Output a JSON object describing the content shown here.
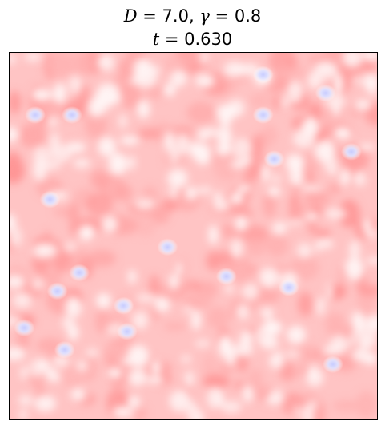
{
  "chart_data": {
    "type": "heatmap",
    "title": {
      "line1": {
        "D_symbol": "D",
        "D_value": "7.0",
        "gamma_symbol": "γ",
        "gamma_value": "0.8"
      },
      "line2": {
        "t_symbol": "t",
        "t_value": "0.630"
      }
    },
    "xlabel": "",
    "ylabel": "",
    "axes_ticks": "none",
    "colormap": "bwr",
    "grid": false,
    "description_values": {
      "field_range": [
        -1.0,
        1.0
      ],
      "dominant_sign": "positive (light red)",
      "negative_spots": [
        [
          0.07,
          0.17
        ],
        [
          0.17,
          0.17
        ],
        [
          0.69,
          0.17
        ],
        [
          0.86,
          0.11
        ],
        [
          0.69,
          0.06
        ],
        [
          0.93,
          0.27
        ],
        [
          0.72,
          0.29
        ],
        [
          0.11,
          0.4
        ],
        [
          0.43,
          0.53
        ],
        [
          0.59,
          0.61
        ],
        [
          0.13,
          0.65
        ],
        [
          0.76,
          0.64
        ],
        [
          0.31,
          0.69
        ],
        [
          0.04,
          0.75
        ],
        [
          0.32,
          0.76
        ],
        [
          0.15,
          0.81
        ],
        [
          0.88,
          0.85
        ],
        [
          0.19,
          0.6
        ]
      ]
    }
  }
}
